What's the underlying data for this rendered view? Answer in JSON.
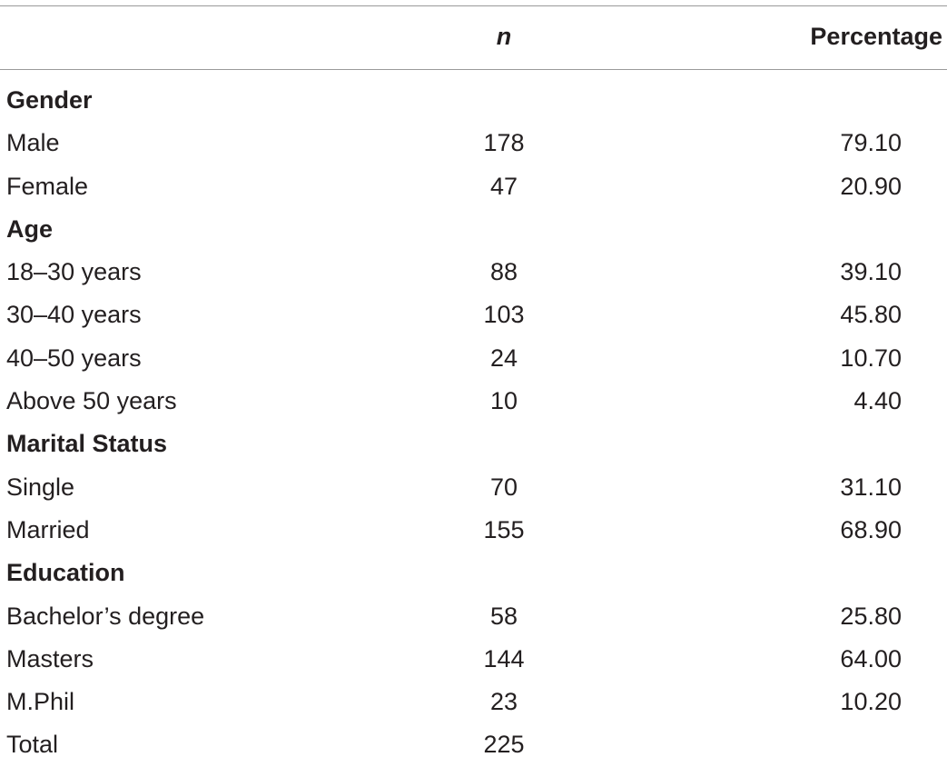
{
  "header": {
    "n": "n",
    "percentage": "Percentage"
  },
  "rows": [
    {
      "label": "Gender",
      "section": true
    },
    {
      "label": "Male",
      "n": "178",
      "pct": "79.10"
    },
    {
      "label": "Female",
      "n": "47",
      "pct": "20.90"
    },
    {
      "label": "Age",
      "section": true
    },
    {
      "label": "18–30 years",
      "n": "88",
      "pct": "39.10"
    },
    {
      "label": "30–40 years",
      "n": "103",
      "pct": "45.80"
    },
    {
      "label": "40–50 years",
      "n": "24",
      "pct": "10.70"
    },
    {
      "label": "Above 50 years",
      "n": "10",
      "pct": "4.40"
    },
    {
      "label": "Marital Status",
      "section": true
    },
    {
      "label": "Single",
      "n": "70",
      "pct": "31.10"
    },
    {
      "label": "Married",
      "n": "155",
      "pct": "68.90"
    },
    {
      "label": "Education",
      "section": true
    },
    {
      "label": "Bachelor’s degree",
      "n": "58",
      "pct": "25.80"
    },
    {
      "label": "Masters",
      "n": "144",
      "pct": "64.00"
    },
    {
      "label": "M.Phil",
      "n": "23",
      "pct": "10.20"
    },
    {
      "label": "Total",
      "n": "225"
    }
  ]
}
